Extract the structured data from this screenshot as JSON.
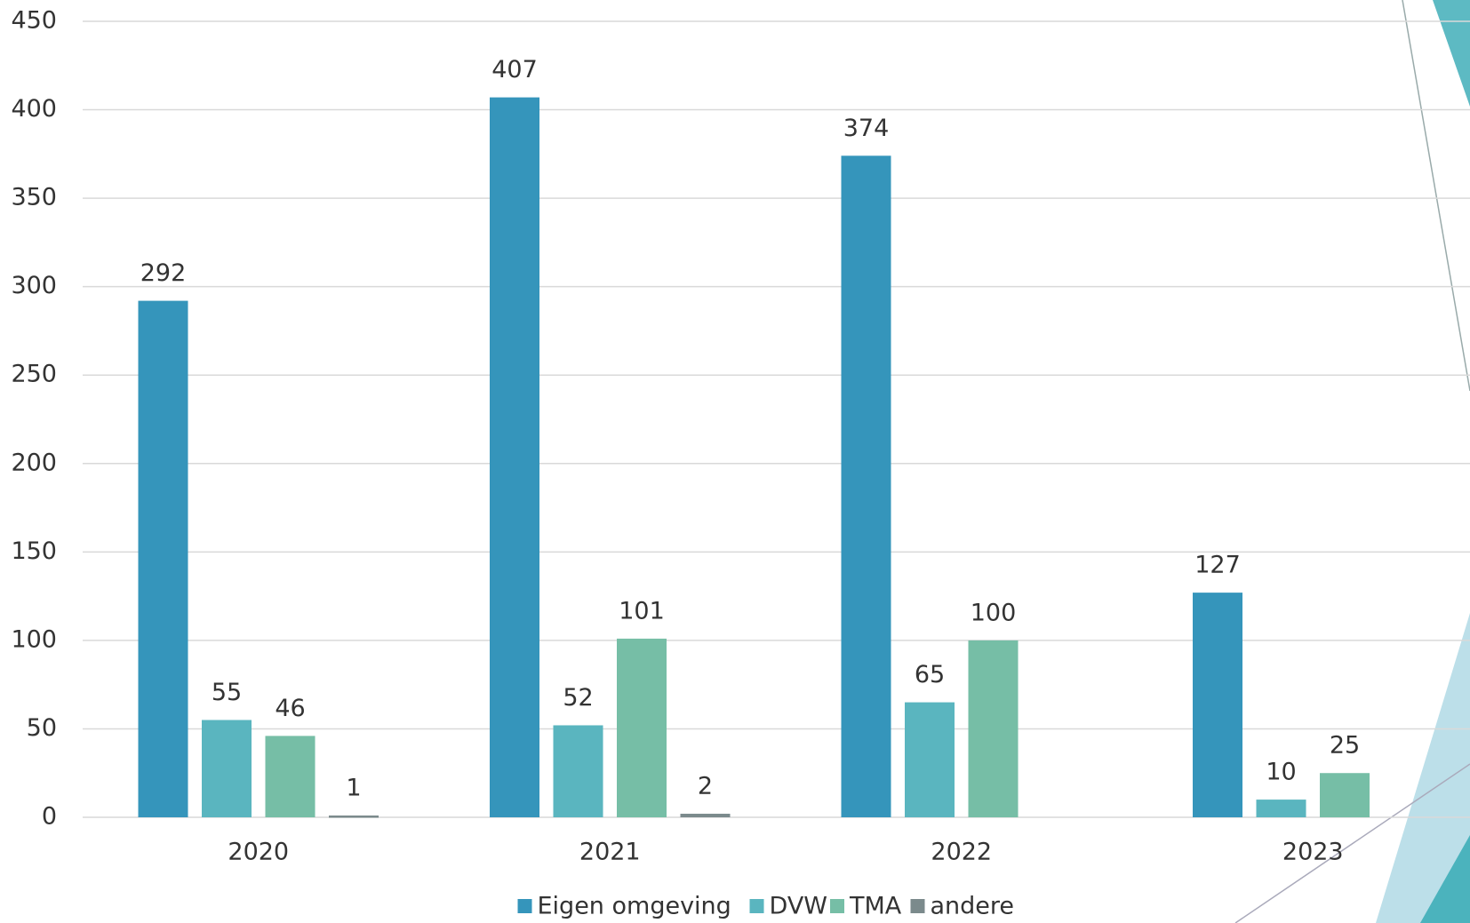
{
  "chart_data": {
    "type": "bar",
    "categories": [
      "2020",
      "2021",
      "2022",
      "2023"
    ],
    "series": [
      {
        "name": "Eigen omgeving",
        "color": "#3595bb",
        "values": [
          292,
          407,
          374,
          127
        ]
      },
      {
        "name": "DVW",
        "color": "#5ab5bf",
        "values": [
          55,
          52,
          65,
          10
        ]
      },
      {
        "name": "TMA",
        "color": "#76bea6",
        "values": [
          46,
          101,
          100,
          25
        ]
      },
      {
        "name": "andere",
        "color": "#7b8a8c",
        "values": [
          1,
          2,
          null,
          null
        ]
      }
    ],
    "ylim": [
      0,
      450
    ],
    "yticks": [
      0,
      50,
      100,
      150,
      200,
      250,
      300,
      350,
      400,
      450
    ],
    "grid": true,
    "legend": "bottom"
  }
}
